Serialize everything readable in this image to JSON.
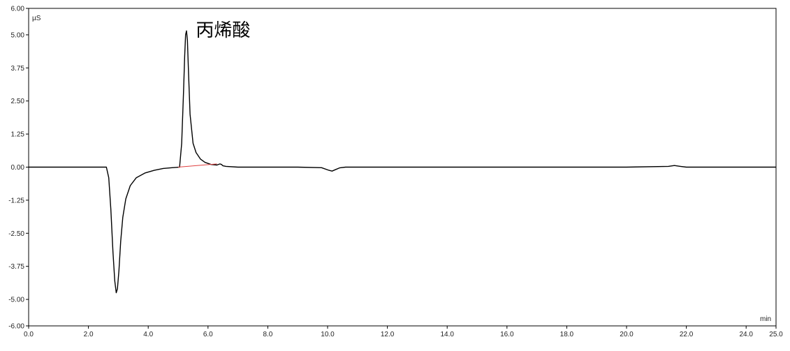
{
  "chart_data": {
    "type": "line",
    "title": "",
    "xlabel": "min",
    "ylabel": "µS",
    "xlim": [
      0.0,
      25.0
    ],
    "ylim": [
      -6.0,
      6.0
    ],
    "grid": false,
    "x_ticks": [
      0.0,
      2.0,
      4.0,
      6.0,
      8.0,
      10.0,
      12.0,
      14.0,
      16.0,
      18.0,
      20.0,
      22.0,
      24.0,
      25.0
    ],
    "x_tick_labels": [
      "0.0",
      "2.0",
      "4.0",
      "6.0",
      "8.0",
      "10.0",
      "12.0",
      "14.0",
      "16.0",
      "18.0",
      "20.0",
      "22.0",
      "24.0",
      "25.0"
    ],
    "y_ticks": [
      6.0,
      5.0,
      3.75,
      2.5,
      1.25,
      0.0,
      -1.25,
      -2.5,
      -3.75,
      -5.0,
      -6.0
    ],
    "y_tick_labels": [
      "6.00",
      "5.00",
      "3.75",
      "2.50",
      "1.25",
      "0.00",
      "-1.25",
      "-2.50",
      "-3.75",
      "-5.00",
      "-6.00"
    ],
    "annotations": [
      {
        "text": "丙烯酸",
        "x": 5.5,
        "y": 5.1
      }
    ],
    "series": [
      {
        "color": "#000000",
        "x": [
          0.0,
          1.0,
          2.0,
          2.6,
          2.68,
          2.75,
          2.82,
          2.88,
          2.93,
          2.97,
          3.02,
          3.08,
          3.15,
          3.25,
          3.4,
          3.6,
          3.9,
          4.2,
          4.5,
          4.8,
          5.05,
          5.12,
          5.18,
          5.22,
          5.25,
          5.28,
          5.31,
          5.35,
          5.4,
          5.5,
          5.6,
          5.75,
          5.9,
          6.1,
          6.3,
          6.4,
          6.45,
          6.5,
          6.6,
          7.0,
          8.0,
          9.0,
          9.8,
          10.05,
          10.15,
          10.25,
          10.4,
          10.6,
          12.0,
          14.0,
          16.0,
          18.0,
          20.0,
          21.4,
          21.6,
          21.8,
          22.0,
          23.0,
          24.0,
          25.0
        ],
        "values": [
          0.0,
          0.0,
          0.0,
          0.0,
          -0.4,
          -1.6,
          -3.2,
          -4.3,
          -4.75,
          -4.6,
          -3.9,
          -2.8,
          -1.9,
          -1.2,
          -0.7,
          -0.4,
          -0.22,
          -0.12,
          -0.05,
          -0.02,
          0.0,
          0.9,
          2.8,
          4.2,
          5.0,
          5.15,
          4.8,
          3.5,
          2.0,
          0.9,
          0.55,
          0.3,
          0.18,
          0.1,
          0.08,
          0.12,
          0.1,
          0.05,
          0.03,
          0.0,
          0.0,
          0.0,
          -0.02,
          -0.12,
          -0.15,
          -0.1,
          -0.03,
          0.0,
          0.0,
          0.0,
          0.0,
          0.0,
          0.0,
          0.03,
          0.06,
          0.03,
          0.0,
          0.0,
          0.0,
          0.0
        ]
      },
      {
        "color": "#e04040",
        "x": [
          5.0,
          6.3
        ],
        "values": [
          0.0,
          0.12
        ]
      }
    ]
  }
}
